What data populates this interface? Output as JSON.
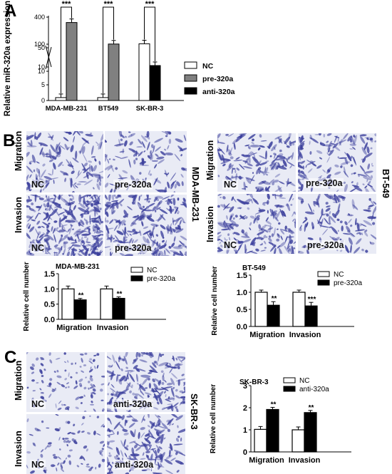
{
  "panels": {
    "A": {
      "letter": "A"
    },
    "B": {
      "letter": "B"
    },
    "C": {
      "letter": "C"
    }
  },
  "micrographs": {
    "B_left": {
      "cell_line": "MDA-MB-231",
      "rows": [
        "Migration",
        "Invasion"
      ],
      "tiles": [
        [
          "NC",
          "pre-320a"
        ],
        [
          "NC",
          "pre-320a"
        ]
      ]
    },
    "B_right": {
      "cell_line": "BT-549",
      "rows": [
        "Migration",
        "Invasion"
      ],
      "tiles": [
        [
          "NC",
          "pre-320a"
        ],
        [
          "NC",
          "pre-320a"
        ]
      ]
    },
    "C": {
      "cell_line": "SK-BR-3",
      "rows": [
        "Migration",
        "Invasion"
      ],
      "tiles": [
        [
          "NC",
          "anti-320a"
        ],
        [
          "NC",
          "anti-320a"
        ]
      ]
    },
    "stain_color": "#3b3f9c"
  },
  "chart_data": [
    {
      "id": "A",
      "type": "bar",
      "title": "",
      "ylabel": "Relative miR-320a expression",
      "xlabel": "",
      "categories": [
        "MDA-MB-231",
        "BT549",
        "SK-BR-3"
      ],
      "series": [
        {
          "name": "NC",
          "values": [
            1,
            1,
            55
          ],
          "color": "#ffffff"
        },
        {
          "name": "pre-320a",
          "values": [
            330,
            52,
            null
          ],
          "color": "#808080"
        },
        {
          "name": "anti-320a",
          "values": [
            null,
            null,
            13
          ],
          "color": "#000000"
        }
      ],
      "yticks": [
        "0",
        "5",
        "10",
        "10",
        "50",
        "100",
        "400"
      ],
      "axis_break": true,
      "significance": [
        "***",
        "***",
        "***"
      ],
      "legend": "right"
    },
    {
      "id": "B_left",
      "type": "bar",
      "title": "MDA-MB-231",
      "ylabel": "Relative cell number",
      "xlabel": "",
      "categories": [
        "Migration",
        "Invasion"
      ],
      "series": [
        {
          "name": "NC",
          "values": [
            1.0,
            1.0
          ],
          "color": "#ffffff"
        },
        {
          "name": "pre-320a",
          "values": [
            0.64,
            0.69
          ],
          "color": "#000000"
        }
      ],
      "ylim": [
        0,
        1.5
      ],
      "yticks": [
        "0.0",
        "0.5",
        "1.0",
        "1.5"
      ],
      "significance": [
        "**",
        "**"
      ],
      "legend": "top-right"
    },
    {
      "id": "B_right",
      "type": "bar",
      "title": "BT-549",
      "ylabel": "Relative cell number",
      "xlabel": "",
      "categories": [
        "Migration",
        "Invasion"
      ],
      "series": [
        {
          "name": "NC",
          "values": [
            1.0,
            1.0
          ],
          "color": "#ffffff"
        },
        {
          "name": "pre-320a",
          "values": [
            0.62,
            0.6
          ],
          "color": "#000000"
        }
      ],
      "ylim": [
        0,
        1.5
      ],
      "yticks": [
        "0.0",
        "0.5",
        "1.0",
        "1.5"
      ],
      "significance": [
        "**",
        "***"
      ],
      "legend": "top-right"
    },
    {
      "id": "C",
      "type": "bar",
      "title": "SK-BR-3",
      "ylabel": "Relative cell number",
      "xlabel": "",
      "categories": [
        "Migration",
        "Invasion"
      ],
      "series": [
        {
          "name": "NC",
          "values": [
            1.02,
            1.0
          ],
          "color": "#ffffff"
        },
        {
          "name": "anti-320a",
          "values": [
            1.92,
            1.78
          ],
          "color": "#000000"
        }
      ],
      "ylim": [
        0,
        3
      ],
      "yticks": [
        "0",
        "1",
        "2",
        "3"
      ],
      "significance": [
        "**",
        "**"
      ],
      "legend": "top-right"
    }
  ]
}
